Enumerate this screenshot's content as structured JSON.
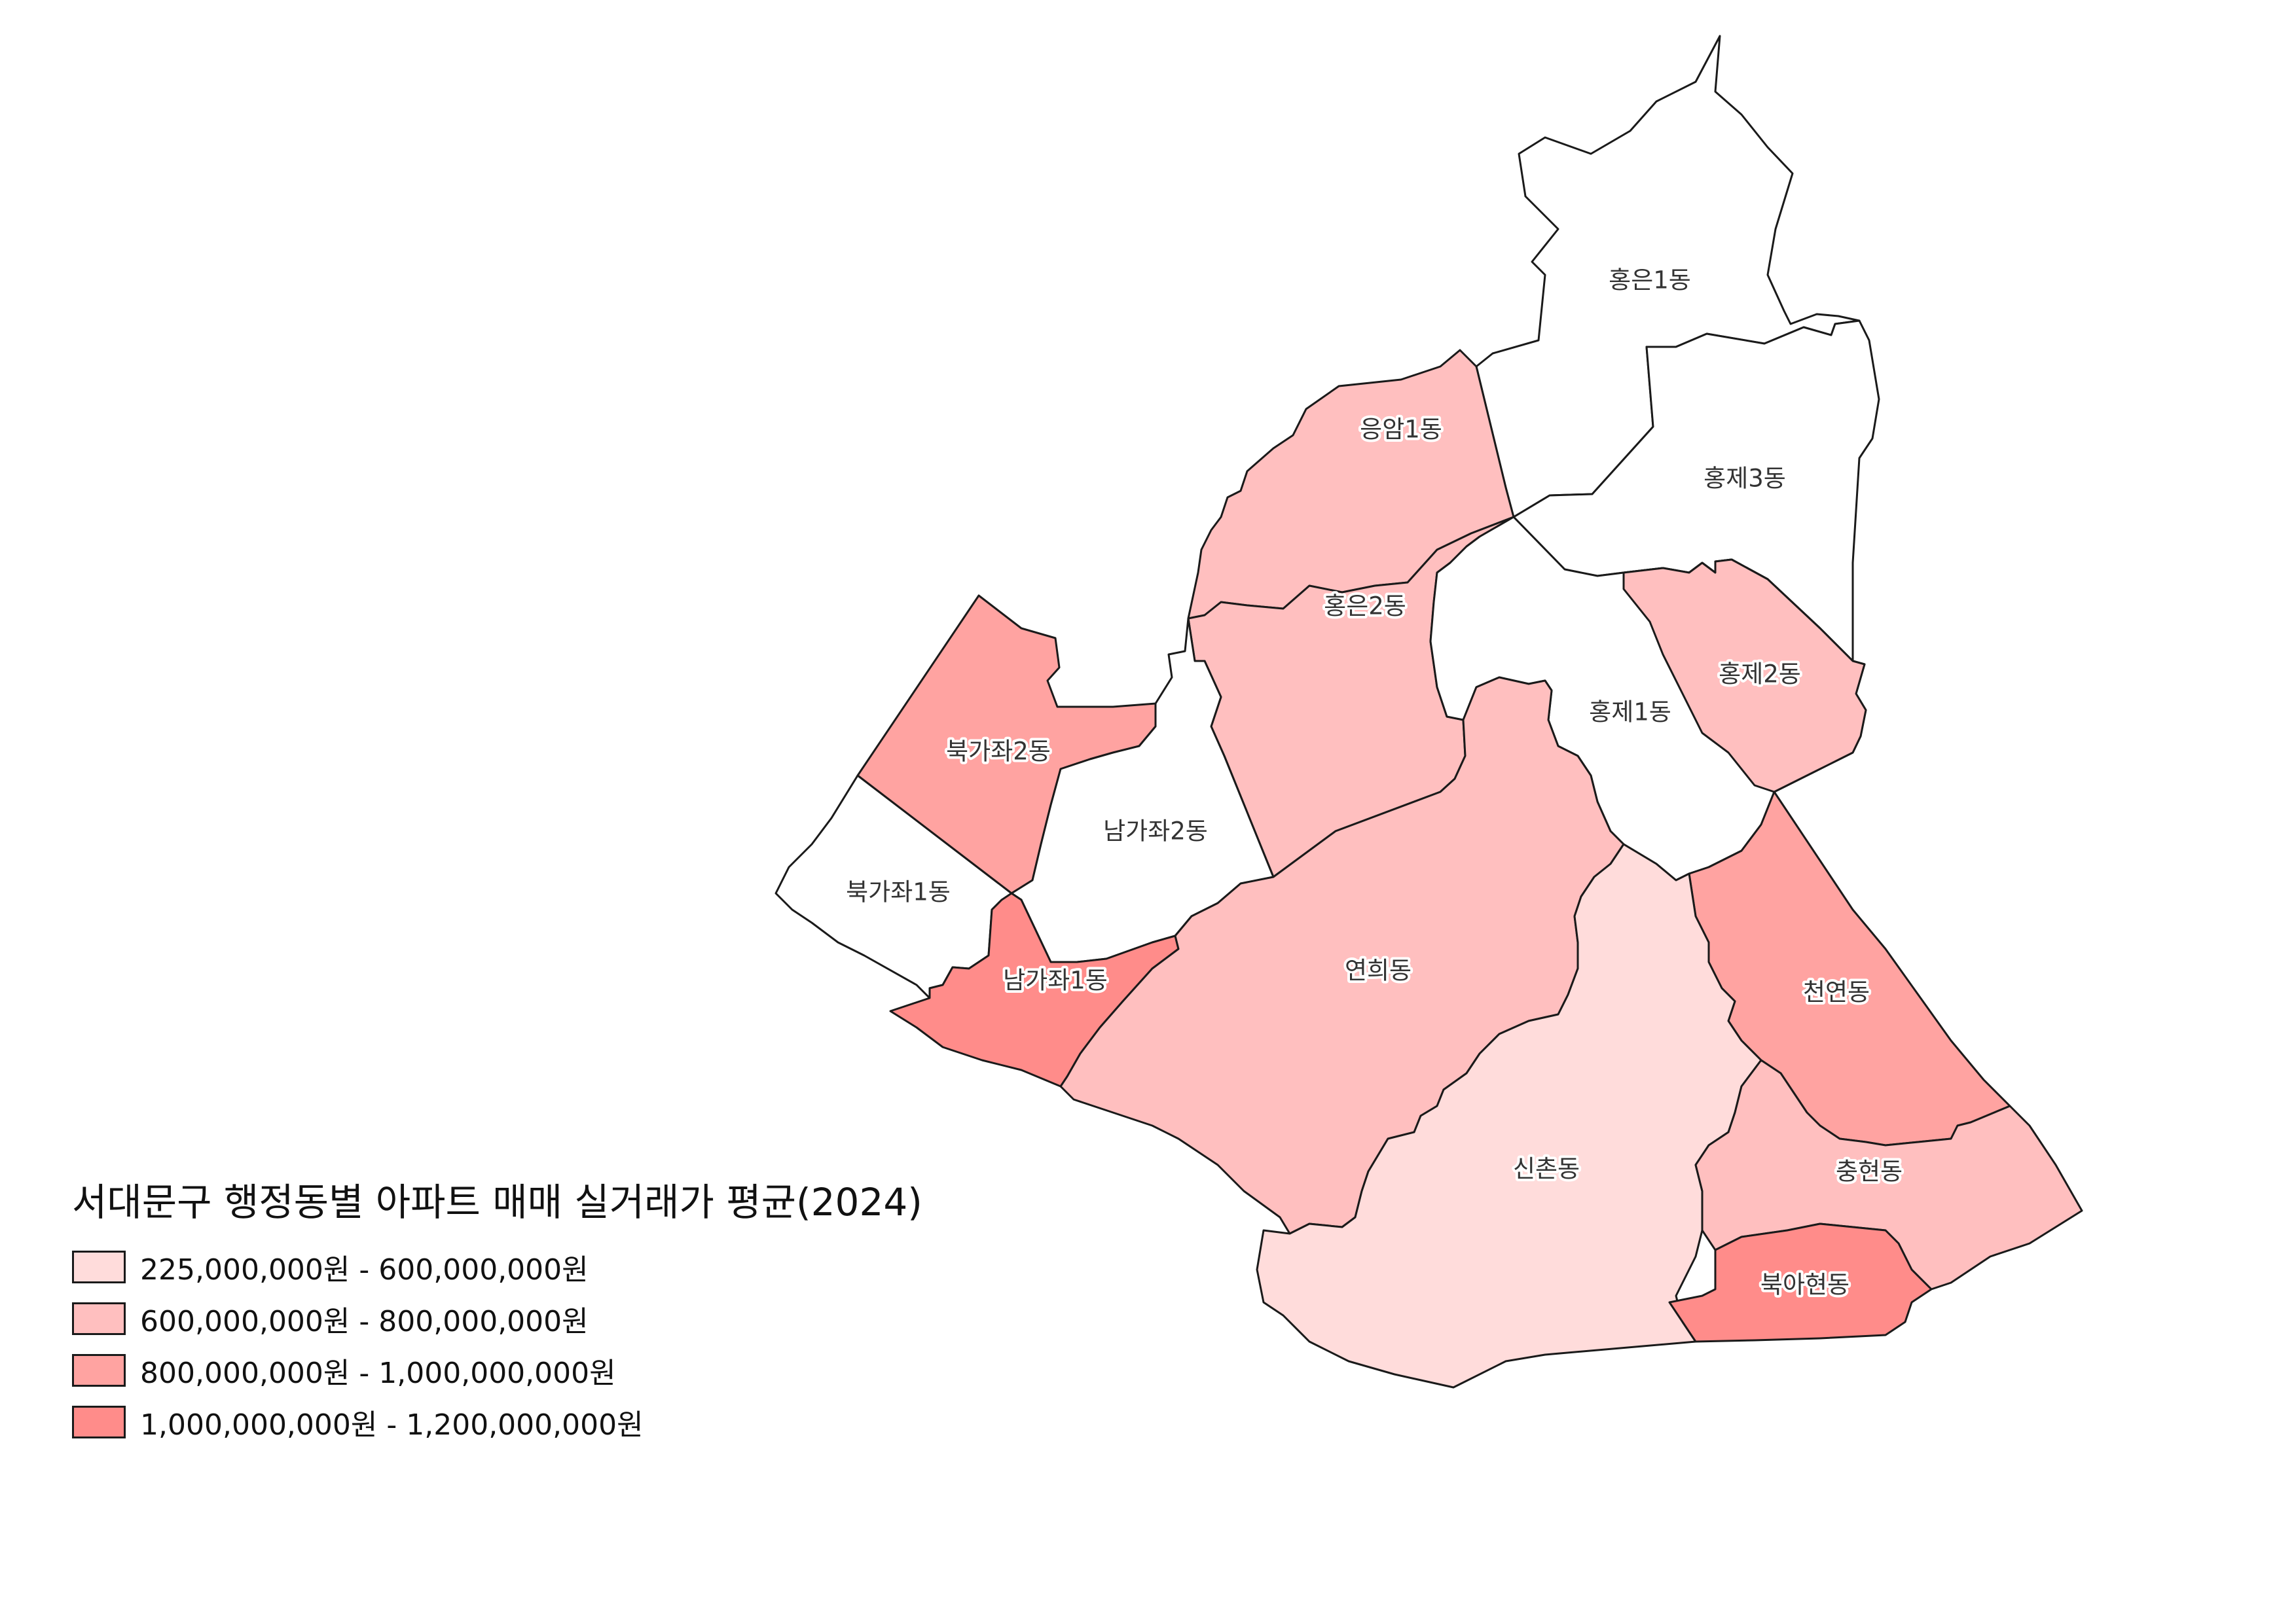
{
  "title": "서대문구 행정동별 아파트 매매 실거래가 평균(2024)",
  "colors": {
    "none": "#ffffff",
    "class1": "#ffdcdb",
    "class2": "#ffbfbf",
    "class3": "#ffa3a1",
    "class4": "#ff8c8a"
  },
  "legend": [
    {
      "label": "225,000,000원 - 600,000,000원",
      "color": "#ffdcdb"
    },
    {
      "label": "600,000,000원 - 800,000,000원",
      "color": "#ffbfbf"
    },
    {
      "label": "800,000,000원 - 1,000,000,000원",
      "color": "#ffa3a1"
    },
    {
      "label": "1,000,000,000원 - 1,200,000,000원",
      "color": "#ff8c8a"
    }
  ],
  "districts": [
    {
      "id": "hongeun1",
      "name": "홍은1동",
      "class": "none"
    },
    {
      "id": "hongje3",
      "name": "홍제3동",
      "class": "none"
    },
    {
      "id": "eungam1",
      "name": "응암1동",
      "class": "class2"
    },
    {
      "id": "hongeun2",
      "name": "홍은2동",
      "class": "class2"
    },
    {
      "id": "hongje1",
      "name": "홍제1동",
      "class": "none"
    },
    {
      "id": "hongje2",
      "name": "홍제2동",
      "class": "class2"
    },
    {
      "id": "bukgajwa2",
      "name": "북가좌2동",
      "class": "class3"
    },
    {
      "id": "namgajwa2",
      "name": "남가좌2동",
      "class": "none"
    },
    {
      "id": "bukgajwa1",
      "name": "북가좌1동",
      "class": "none"
    },
    {
      "id": "namgajwa1",
      "name": "남가좌1동",
      "class": "class4"
    },
    {
      "id": "yeonhui",
      "name": "연희동",
      "class": "class2"
    },
    {
      "id": "cheonyeon",
      "name": "천연동",
      "class": "class3"
    },
    {
      "id": "sinchon",
      "name": "신촌동",
      "class": "class1"
    },
    {
      "id": "chunghyeon",
      "name": "충현동",
      "class": "class2"
    },
    {
      "id": "bugahyeon",
      "name": "북아현동",
      "class": "class4"
    }
  ]
}
